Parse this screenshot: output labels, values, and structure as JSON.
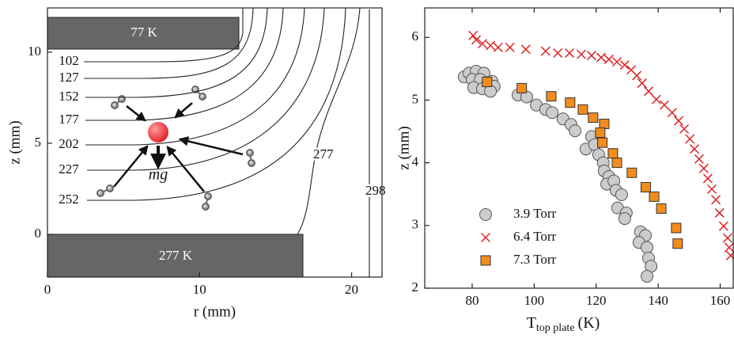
{
  "chart_data": [
    {
      "type": "contour",
      "xlabel": "r (mm)",
      "ylabel": "z (mm)",
      "xlim": [
        0,
        22
      ],
      "ylim": [
        -2.35,
        12.43
      ],
      "xticks": [
        0,
        10,
        20
      ],
      "yticks": [
        0,
        5,
        10
      ],
      "contour_levels": [
        102,
        127,
        152,
        177,
        202,
        227,
        252,
        277,
        298
      ],
      "annotations": [
        "77 K",
        "277 K",
        "mg"
      ],
      "color": "#222222"
    },
    {
      "type": "scatter",
      "xlabel": "T",
      "xlabel_subscript": "top plate",
      "xlabel_unit": "(K)",
      "ylabel": "z (mm)",
      "xlim": [
        64.7,
        164.2
      ],
      "ylim": [
        2,
        6.47
      ],
      "xticks": [
        80,
        100,
        120,
        140,
        160
      ],
      "yticks": [
        2,
        3,
        4,
        5,
        6
      ],
      "legend": "lower left",
      "series": [
        {
          "name": "3.9 Torr",
          "color": "#cccccc",
          "marker": "circle",
          "x": [
            77.4,
            79,
            81.3,
            83.8,
            80,
            82.6,
            85.1,
            80.5,
            83.3,
            86.4,
            87.1,
            85.9,
            94.8,
            97.6,
            100.7,
            103.7,
            105.8,
            109.3,
            111.9,
            113.2,
            118.5,
            116.7,
            119.5,
            120.8,
            122.3,
            122.6,
            124.1,
            123.4,
            125.7,
            126.4,
            128.2,
            126.9,
            129.7,
            129.2,
            134.3,
            135.9,
            133.8,
            136.4,
            136.9,
            137.7,
            136.4
          ],
          "y": [
            5.37,
            5.43,
            5.46,
            5.43,
            5.33,
            5.33,
            5.28,
            5.2,
            5.18,
            5.3,
            5.22,
            5.14,
            5.08,
            5.05,
            4.92,
            4.85,
            4.8,
            4.7,
            4.61,
            4.51,
            4.42,
            4.22,
            4.29,
            4.13,
            4.0,
            3.87,
            3.78,
            3.66,
            3.71,
            3.56,
            3.49,
            3.28,
            3.2,
            3.11,
            2.9,
            2.84,
            2.73,
            2.65,
            2.48,
            2.35,
            2.19
          ]
        },
        {
          "name": "6.4 Torr",
          "color": "#dd2222",
          "marker": "x",
          "x": [
            80.3,
            81.3,
            83.3,
            85.9,
            88.4,
            92.2,
            97.3,
            103.7,
            107.6,
            111.4,
            115.2,
            118.5,
            121.6,
            124.1,
            126.7,
            129.2,
            131.3,
            133.1,
            134.8,
            136.9,
            139.4,
            142,
            144.5,
            146.6,
            148.4,
            150.2,
            151.7,
            153.2,
            154.7,
            156,
            157.3,
            158.6,
            159.8,
            161.1,
            162.4,
            162.9,
            163.4
          ],
          "y": [
            6.03,
            5.96,
            5.9,
            5.87,
            5.84,
            5.84,
            5.81,
            5.78,
            5.75,
            5.75,
            5.73,
            5.71,
            5.68,
            5.65,
            5.61,
            5.56,
            5.48,
            5.39,
            5.27,
            5.14,
            5.01,
            4.92,
            4.8,
            4.67,
            4.54,
            4.38,
            4.22,
            4.06,
            3.91,
            3.75,
            3.58,
            3.41,
            3.2,
            2.99,
            2.8,
            2.65,
            2.52
          ]
        },
        {
          "name": "7.3 Torr",
          "color": "#f28c1e",
          "marker": "square",
          "x": [
            84.8,
            96,
            105.5,
            111.6,
            115.7,
            119,
            122.6,
            121.3,
            122,
            125.4,
            126.7,
            131.5,
            136,
            138.7,
            141,
            145.8,
            146.3
          ],
          "y": [
            5.29,
            5.19,
            5.06,
            4.96,
            4.85,
            4.72,
            4.62,
            4.48,
            4.32,
            4.15,
            4.0,
            3.84,
            3.61,
            3.46,
            3.27,
            2.96,
            2.71
          ]
        }
      ]
    }
  ]
}
